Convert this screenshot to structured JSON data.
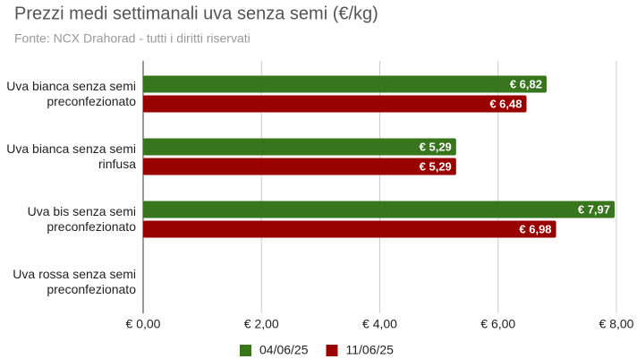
{
  "chart_data": {
    "type": "hbar",
    "title": "Prezzi medi settimanali uva senza semi (€/kg)",
    "subtitle": "Fonte: NCX Drahorad - tutti i diritti riservati",
    "categories": [
      "Uva bianca senza semi preconfezionato",
      "Uva bianca senza semi rinfusa",
      "Uva bis senza semi preconfezionato",
      "Uva rossa senza semi preconfezionato"
    ],
    "series": [
      {
        "name": "04/06/25",
        "color": "#38761d",
        "values": [
          6.82,
          5.29,
          7.97,
          null
        ],
        "value_labels": [
          "€ 6,82",
          "€ 5,29",
          "€ 7,97",
          null
        ]
      },
      {
        "name": "11/06/25",
        "color": "#990000",
        "values": [
          6.48,
          5.29,
          6.98,
          null
        ],
        "value_labels": [
          "€ 6,48",
          "€ 5,29",
          "€ 6,98",
          null
        ]
      }
    ],
    "xlim": [
      0,
      8
    ],
    "xticks": [
      {
        "value": 0,
        "label": "€ 0,00"
      },
      {
        "value": 2,
        "label": "€ 2,00"
      },
      {
        "value": 4,
        "label": "€ 4,00"
      },
      {
        "value": 6,
        "label": "€ 6,00"
      },
      {
        "value": 8,
        "label": "€ 8,00"
      }
    ],
    "grid": true,
    "legend": "bottom"
  }
}
